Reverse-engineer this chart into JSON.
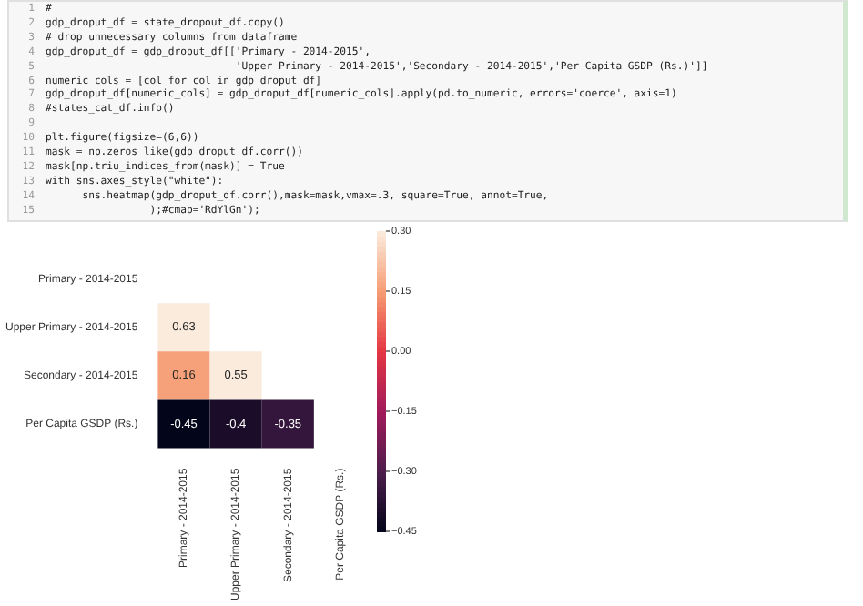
{
  "chart_data": {
    "type": "heatmap",
    "categories": [
      "Primary - 2014-2015",
      "Upper Primary - 2014-2015",
      "Secondary - 2014-2015",
      "Per Capita GSDP (Rs.)"
    ],
    "y_categories": [
      "Primary - 2014-2015",
      "Upper Primary - 2014-2015",
      "Secondary - 2014-2015",
      "Per Capita GSDP (Rs.)"
    ],
    "cells": [
      [
        null,
        null,
        null,
        null
      ],
      [
        0.63,
        null,
        null,
        null
      ],
      [
        0.16,
        0.55,
        null,
        null
      ],
      [
        -0.45,
        -0.4,
        -0.35,
        null
      ]
    ],
    "clim": [
      -0.45,
      0.3
    ],
    "cticks": [
      {
        "value": 0.3,
        "label": "0.30"
      },
      {
        "value": 0.15,
        "label": "0.15"
      },
      {
        "value": 0,
        "label": "0.00"
      },
      {
        "value": -0.15,
        "label": "−0.15"
      },
      {
        "value": -0.3,
        "label": "−0.30"
      },
      {
        "value": -0.45,
        "label": "−0.45"
      }
    ],
    "data_labels": true,
    "annotations": [
      "1 #",
      "2 gdp_droput_df = state_dropout_df.copy()",
      "3 # drop unnecessary columns from dataframe",
      "4 gdp_droput_df = gdp_droput_df[['Primary - 2014-2015',",
      "5                                'Upper Primary - 2014-2015','Secondary - 2014-2015','Per Capita GSDP (Rs.)']]",
      "6 numeric_cols = [col for col in gdp_droput_df]",
      "7 gdp_droput_df[numeric_cols] = gdp_droput_df[numeric_cols].apply(pd.to_numeric, errors='coerce', axis=1)",
      "8 #states_cat_df.info()",
      "9",
      "10 plt.figure(figsize=(6,6))",
      "11 mask = np.zeros_like(gdp_droput_df.corr())",
      "12 mask[np.triu_indices_from(mask)] = True",
      "13 with sns.axes_style(\"white\"):",
      "14       sns.heatmap(gdp_droput_df.corr(),mask=mask,vmax=.3, square=True, annot=True,",
      "15                  );#cmap='RdYlGn');"
    ]
  }
}
